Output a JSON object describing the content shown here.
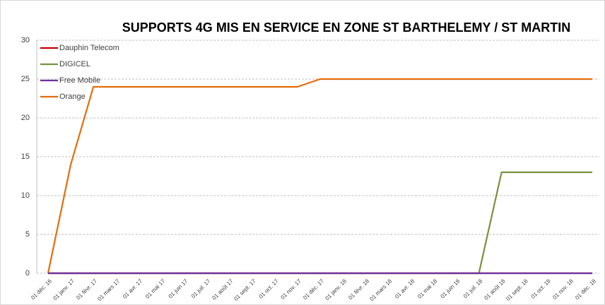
{
  "chart_data": {
    "type": "line",
    "title": "SUPPORTS 4G MIS EN SERVICE  EN ZONE ST BARTHELEMY / ST MARTIN",
    "categories": [
      "01 déc. 16",
      "01 janv. 17",
      "01 févr. 17",
      "01 mars 17",
      "01 avr. 17",
      "01 mai 17",
      "01 juin 17",
      "01 juil. 17",
      "01 août 17",
      "01 sept. 17",
      "01 oct. 17",
      "01 nov. 17",
      "01 déc. 17",
      "01 janv. 18",
      "01 févr. 18",
      "01 mars 18",
      "01 avr. 18",
      "01 mai 18",
      "01 juin 18",
      "01 juil. 18",
      "01 août 18",
      "01 sept. 18",
      "01 oct. 18",
      "01 nov. 18",
      "01 déc. 18"
    ],
    "series": [
      {
        "name": "Dauphin Telecom",
        "color": "#c00000",
        "values": [
          0,
          0,
          0,
          0,
          0,
          0,
          0,
          0,
          0,
          0,
          0,
          0,
          0,
          0,
          0,
          0,
          0,
          0,
          0,
          0,
          0,
          0,
          0,
          0,
          0
        ]
      },
      {
        "name": "DIGICEL",
        "color": "#77933c",
        "values": [
          0,
          0,
          0,
          0,
          0,
          0,
          0,
          0,
          0,
          0,
          0,
          0,
          0,
          0,
          0,
          0,
          0,
          0,
          0,
          0,
          13,
          13,
          13,
          13,
          13
        ]
      },
      {
        "name": "Free Mobile",
        "color": "#7030a0",
        "values": [
          0,
          0,
          0,
          0,
          0,
          0,
          0,
          0,
          0,
          0,
          0,
          0,
          0,
          0,
          0,
          0,
          0,
          0,
          0,
          0,
          0,
          0,
          0,
          0,
          0
        ]
      },
      {
        "name": "Orange",
        "color": "#e46c0a",
        "values": [
          0,
          14,
          24,
          24,
          24,
          24,
          24,
          24,
          24,
          24,
          24,
          24,
          25,
          25,
          25,
          25,
          25,
          25,
          25,
          25,
          25,
          25,
          25,
          25,
          25
        ]
      }
    ],
    "ylim": [
      0,
      30
    ],
    "yticks": [
      0,
      5,
      10,
      15,
      20,
      25,
      30
    ],
    "grid": true,
    "legend": "top-left"
  }
}
